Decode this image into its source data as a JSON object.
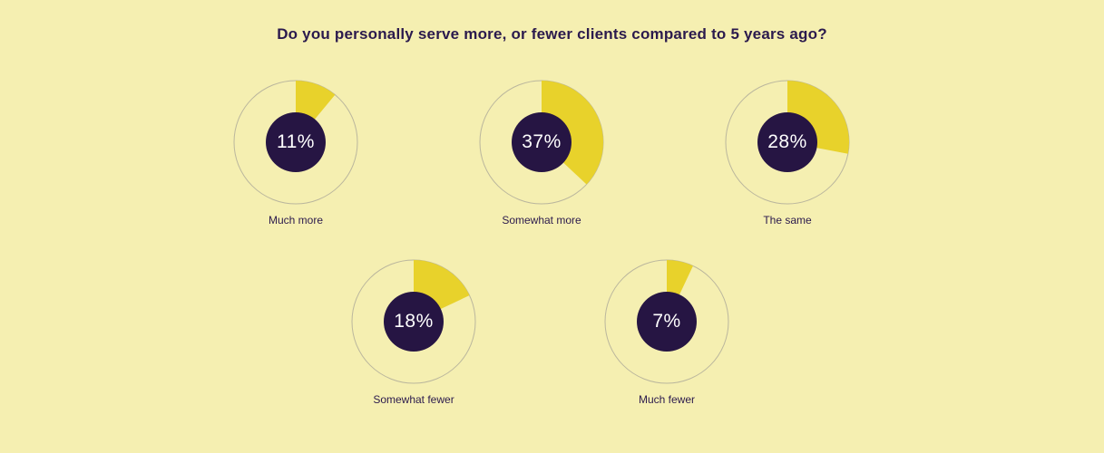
{
  "title": "Do you personally serve more, or fewer clients compared to 5 years ago?",
  "chart_data": {
    "type": "pie",
    "variant": "donut-gauge-small-multiples",
    "title": "Do you personally serve more, or fewer clients compared to 5 years ago?",
    "categories": [
      "Much more",
      "Somewhat more",
      "The same",
      "Somewhat fewer",
      "Much fewer"
    ],
    "values": [
      11,
      37,
      28,
      18,
      7
    ],
    "unit": "%",
    "value_labels": [
      "11%",
      "37%",
      "28%",
      "18%",
      "7%"
    ],
    "start_angle_deg": 0,
    "direction": "clockwise",
    "legend_position": "none",
    "grid": false,
    "layout_hint": "three gauges on top row, two gauges on bottom row; filled yellow arc over outlined circle with dark center disc showing value"
  },
  "donuts": [
    {
      "label": "Much more",
      "value": 11,
      "display": "11%"
    },
    {
      "label": "Somewhat more",
      "value": 37,
      "display": "37%"
    },
    {
      "label": "The same",
      "value": 28,
      "display": "28%"
    },
    {
      "label": "Somewhat fewer",
      "value": 18,
      "display": "18%"
    },
    {
      "label": "Much fewer",
      "value": 7,
      "display": "7%"
    }
  ],
  "colors": {
    "background": "#f5efb1",
    "wedge": "#e8d22b",
    "center_circle": "#261543",
    "ring_outline": "#bab69d",
    "text_dark": "#2b1a4d",
    "text_light": "#ffffff"
  }
}
